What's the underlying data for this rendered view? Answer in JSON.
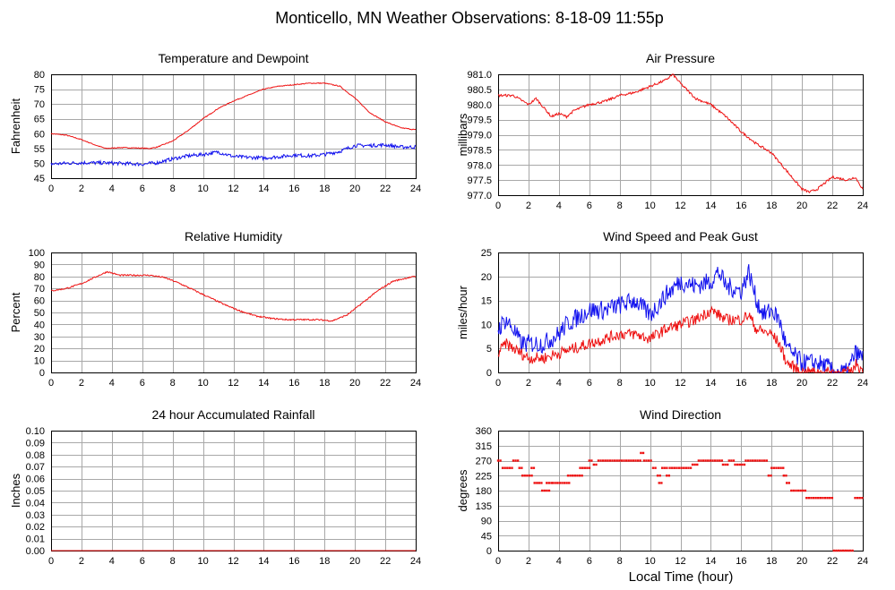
{
  "page": {
    "title": "Monticello, MN Weather Observations: 8-18-09 11:55p",
    "x_axis_label": "Local Time (hour)"
  },
  "colors": {
    "red": "#ee1111",
    "blue": "#1111ee"
  },
  "chart_data": [
    {
      "id": "temp",
      "type": "line",
      "title": "Temperature and Dewpoint",
      "ylabel": "Fahrenheit",
      "xlim": [
        0,
        24
      ],
      "ylim": [
        45,
        80
      ],
      "xticks": [
        0,
        2,
        4,
        6,
        8,
        10,
        12,
        14,
        16,
        18,
        20,
        22,
        24
      ],
      "yticks": [
        45,
        50,
        55,
        60,
        65,
        70,
        75,
        80
      ],
      "ytick_decimals": 0,
      "grid": true,
      "series": [
        {
          "color": "red",
          "noise": 0.15,
          "points": [
            [
              0,
              60
            ],
            [
              1,
              59.5
            ],
            [
              2,
              58
            ],
            [
              3,
              56
            ],
            [
              3.6,
              55
            ],
            [
              4.5,
              55.3
            ],
            [
              5.5,
              55.2
            ],
            [
              6.5,
              55
            ],
            [
              7,
              55.5
            ],
            [
              8,
              57.5
            ],
            [
              9,
              61
            ],
            [
              10,
              65
            ],
            [
              11,
              68.5
            ],
            [
              12,
              71
            ],
            [
              13,
              73
            ],
            [
              14,
              75
            ],
            [
              15,
              76
            ],
            [
              16,
              76.5
            ],
            [
              17,
              77
            ],
            [
              18,
              77
            ],
            [
              19,
              76
            ],
            [
              20,
              72
            ],
            [
              21,
              67
            ],
            [
              22,
              64
            ],
            [
              23,
              62
            ],
            [
              24,
              61.3
            ]
          ]
        },
        {
          "color": "blue",
          "noise": 0.6,
          "points": [
            [
              0,
              49.8
            ],
            [
              2,
              50.2
            ],
            [
              4,
              50.1
            ],
            [
              6,
              49.7
            ],
            [
              7,
              50.2
            ],
            [
              8,
              51.5
            ],
            [
              9,
              52.5
            ],
            [
              10,
              53
            ],
            [
              11,
              53.8
            ],
            [
              12,
              52.3
            ],
            [
              13,
              52
            ],
            [
              14,
              51.8
            ],
            [
              15,
              52.2
            ],
            [
              16,
              52.8
            ],
            [
              17,
              52.5
            ],
            [
              18,
              53
            ],
            [
              19,
              54
            ],
            [
              20,
              56
            ],
            [
              21,
              56
            ],
            [
              22,
              56.2
            ],
            [
              23,
              55.5
            ],
            [
              24,
              55.5
            ]
          ]
        }
      ]
    },
    {
      "id": "pressure",
      "type": "line",
      "title": "Air Pressure",
      "ylabel": "millibars",
      "xlim": [
        0,
        24
      ],
      "ylim": [
        977.0,
        981.0
      ],
      "xticks": [
        0,
        2,
        4,
        6,
        8,
        10,
        12,
        14,
        16,
        18,
        20,
        22,
        24
      ],
      "yticks": [
        977.0,
        977.5,
        978.0,
        978.5,
        979.0,
        979.5,
        980.0,
        980.5,
        981.0
      ],
      "ytick_decimals": 1,
      "grid": true,
      "series": [
        {
          "color": "red",
          "noise": 0.04,
          "points": [
            [
              0,
              980.3
            ],
            [
              1,
              980.3
            ],
            [
              2,
              980.0
            ],
            [
              2.5,
              980.2
            ],
            [
              3,
              979.9
            ],
            [
              3.5,
              979.6
            ],
            [
              4,
              979.7
            ],
            [
              4.5,
              979.6
            ],
            [
              5,
              979.8
            ],
            [
              6,
              980.0
            ],
            [
              7,
              980.1
            ],
            [
              8,
              980.3
            ],
            [
              9,
              980.4
            ],
            [
              10,
              980.6
            ],
            [
              11,
              980.8
            ],
            [
              11.5,
              981.0
            ],
            [
              12,
              980.7
            ],
            [
              13,
              980.2
            ],
            [
              14,
              980.0
            ],
            [
              15,
              979.6
            ],
            [
              16,
              979.1
            ],
            [
              17,
              978.7
            ],
            [
              18,
              978.4
            ],
            [
              19,
              977.8
            ],
            [
              20,
              977.2
            ],
            [
              20.5,
              977.1
            ],
            [
              21,
              977.2
            ],
            [
              22,
              977.6
            ],
            [
              23,
              977.5
            ],
            [
              23.5,
              977.6
            ],
            [
              24,
              977.2
            ]
          ]
        }
      ]
    },
    {
      "id": "rh",
      "type": "line",
      "title": "Relative Humidity",
      "ylabel": "Percent",
      "xlim": [
        0,
        24
      ],
      "ylim": [
        0,
        100
      ],
      "xticks": [
        0,
        2,
        4,
        6,
        8,
        10,
        12,
        14,
        16,
        18,
        20,
        22,
        24
      ],
      "yticks": [
        0,
        10,
        20,
        30,
        40,
        50,
        60,
        70,
        80,
        90,
        100
      ],
      "ytick_decimals": 0,
      "grid": true,
      "series": [
        {
          "color": "red",
          "noise": 0.6,
          "points": [
            [
              0,
              68
            ],
            [
              1,
              70
            ],
            [
              2,
              74
            ],
            [
              3,
              80
            ],
            [
              3.7,
              84
            ],
            [
              4.5,
              81
            ],
            [
              5.5,
              81
            ],
            [
              6.5,
              81
            ],
            [
              7.5,
              79
            ],
            [
              8.5,
              74
            ],
            [
              9.5,
              68
            ],
            [
              10.5,
              62
            ],
            [
              11.5,
              56
            ],
            [
              12.5,
              51
            ],
            [
              13.5,
              47
            ],
            [
              14.5,
              45
            ],
            [
              15.5,
              44
            ],
            [
              16.5,
              44
            ],
            [
              17.5,
              44
            ],
            [
              18.5,
              43
            ],
            [
              19.5,
              48
            ],
            [
              20.5,
              58
            ],
            [
              21.5,
              68
            ],
            [
              22.5,
              76
            ],
            [
              23.5,
              79
            ],
            [
              24,
              80
            ]
          ]
        }
      ]
    },
    {
      "id": "wind",
      "type": "line",
      "title": "Wind Speed and Peak Gust",
      "ylabel": "miles/hour",
      "xlim": [
        0,
        24
      ],
      "ylim": [
        0,
        25
      ],
      "xticks": [
        0,
        2,
        4,
        6,
        8,
        10,
        12,
        14,
        16,
        18,
        20,
        22,
        24
      ],
      "yticks": [
        0,
        5,
        10,
        15,
        20,
        25
      ],
      "ytick_decimals": 0,
      "grid": true,
      "series": [
        {
          "color": "blue",
          "noise": 2.0,
          "points": [
            [
              0,
              9
            ],
            [
              0.5,
              11
            ],
            [
              1,
              9
            ],
            [
              1.5,
              6
            ],
            [
              2,
              6
            ],
            [
              3,
              6
            ],
            [
              4,
              8
            ],
            [
              4.5,
              10
            ],
            [
              5,
              11
            ],
            [
              6,
              13
            ],
            [
              7,
              13
            ],
            [
              8,
              14
            ],
            [
              9,
              15
            ],
            [
              10,
              12
            ],
            [
              11,
              16
            ],
            [
              12,
              19
            ],
            [
              13,
              18
            ],
            [
              14,
              19
            ],
            [
              14.5,
              21
            ],
            [
              15,
              18
            ],
            [
              16,
              17
            ],
            [
              16.5,
              21
            ],
            [
              17,
              15
            ],
            [
              17.5,
              12
            ],
            [
              18,
              13
            ],
            [
              18.5,
              11
            ],
            [
              19,
              5
            ],
            [
              20,
              2
            ],
            [
              21,
              2
            ],
            [
              21.8,
              1
            ],
            [
              22,
              0
            ],
            [
              23,
              0
            ],
            [
              23.5,
              4
            ],
            [
              24,
              3
            ]
          ]
        },
        {
          "color": "red",
          "noise": 1.2,
          "points": [
            [
              0,
              4
            ],
            [
              0.5,
              6
            ],
            [
              1,
              5
            ],
            [
              2,
              3
            ],
            [
              3,
              3
            ],
            [
              4,
              4
            ],
            [
              5,
              5
            ],
            [
              6,
              6
            ],
            [
              7,
              7
            ],
            [
              8,
              8
            ],
            [
              9,
              8
            ],
            [
              10,
              7
            ],
            [
              11,
              9
            ],
            [
              12,
              10
            ],
            [
              13,
              11
            ],
            [
              14,
              13
            ],
            [
              15,
              11
            ],
            [
              16,
              11
            ],
            [
              16.5,
              12
            ],
            [
              17,
              9
            ],
            [
              18,
              8
            ],
            [
              18.5,
              6
            ],
            [
              19,
              2
            ],
            [
              20,
              0
            ],
            [
              22,
              0
            ],
            [
              23.3,
              0
            ],
            [
              23.6,
              2
            ],
            [
              24,
              0
            ]
          ]
        }
      ]
    },
    {
      "id": "rain",
      "type": "line",
      "title": "24 hour Accumulated Rainfall",
      "ylabel": "Inches",
      "xlim": [
        0,
        24
      ],
      "ylim": [
        0,
        0.1
      ],
      "xticks": [
        0,
        2,
        4,
        6,
        8,
        10,
        12,
        14,
        16,
        18,
        20,
        22,
        24
      ],
      "yticks": [
        0.0,
        0.01,
        0.02,
        0.03,
        0.04,
        0.05,
        0.06,
        0.07,
        0.08,
        0.09,
        0.1
      ],
      "ytick_decimals": 2,
      "grid": true,
      "series": [
        {
          "color": "red",
          "noise": 0,
          "points": [
            [
              0,
              0
            ],
            [
              24,
              0
            ]
          ]
        }
      ]
    },
    {
      "id": "winddir",
      "type": "scatter",
      "title": "Wind Direction",
      "ylabel": "degrees",
      "xlabel": "Local Time (hour)",
      "xlim": [
        0,
        24
      ],
      "ylim": [
        0,
        360
      ],
      "xticks": [
        0,
        2,
        4,
        6,
        8,
        10,
        12,
        14,
        16,
        18,
        20,
        22,
        24
      ],
      "yticks": [
        0,
        45,
        90,
        135,
        180,
        225,
        270,
        315,
        360
      ],
      "ytick_decimals": 0,
      "grid": true,
      "series": [
        {
          "color": "red",
          "segments": [
            [
              0,
              0.3,
              270
            ],
            [
              0.3,
              1.0,
              248
            ],
            [
              1.0,
              1.4,
              270
            ],
            [
              1.4,
              1.6,
              248
            ],
            [
              1.6,
              2.3,
              225
            ],
            [
              2.2,
              2.4,
              248
            ],
            [
              2.4,
              2.6,
              203
            ],
            [
              2.7,
              2.9,
              203
            ],
            [
              2.9,
              3.4,
              180
            ],
            [
              3.2,
              3.6,
              203
            ],
            [
              3.6,
              4.7,
              203
            ],
            [
              4.6,
              5.6,
              225
            ],
            [
              5.4,
              6.1,
              248
            ],
            [
              6.0,
              6.3,
              270
            ],
            [
              6.3,
              6.6,
              258
            ],
            [
              6.6,
              9.4,
              270
            ],
            [
              9.4,
              9.6,
              293
            ],
            [
              9.6,
              10.2,
              270
            ],
            [
              10.2,
              10.5,
              248
            ],
            [
              10.5,
              10.7,
              225
            ],
            [
              10.6,
              10.8,
              203
            ],
            [
              10.8,
              11.2,
              248
            ],
            [
              11.1,
              11.3,
              225
            ],
            [
              11.3,
              12.8,
              248
            ],
            [
              12.8,
              13.2,
              258
            ],
            [
              13.2,
              14.8,
              270
            ],
            [
              14.8,
              15.2,
              258
            ],
            [
              15.2,
              15.6,
              270
            ],
            [
              15.6,
              16.3,
              258
            ],
            [
              16.3,
              17.8,
              270
            ],
            [
              17.8,
              18.0,
              225
            ],
            [
              18.0,
              18.8,
              248
            ],
            [
              18.8,
              19.1,
              225
            ],
            [
              19.0,
              19.3,
              203
            ],
            [
              19.3,
              20.3,
              180
            ],
            [
              20.3,
              22.0,
              158
            ],
            [
              22.1,
              23.4,
              0
            ],
            [
              23.5,
              24,
              158
            ]
          ]
        }
      ]
    }
  ]
}
